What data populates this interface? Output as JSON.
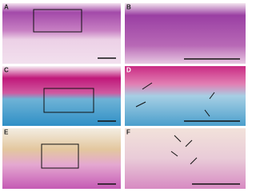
{
  "panels": [
    {
      "label": "A"
    },
    {
      "label": "B"
    },
    {
      "label": "C"
    },
    {
      "label": "D"
    },
    {
      "label": "E"
    },
    {
      "label": "F"
    }
  ]
}
